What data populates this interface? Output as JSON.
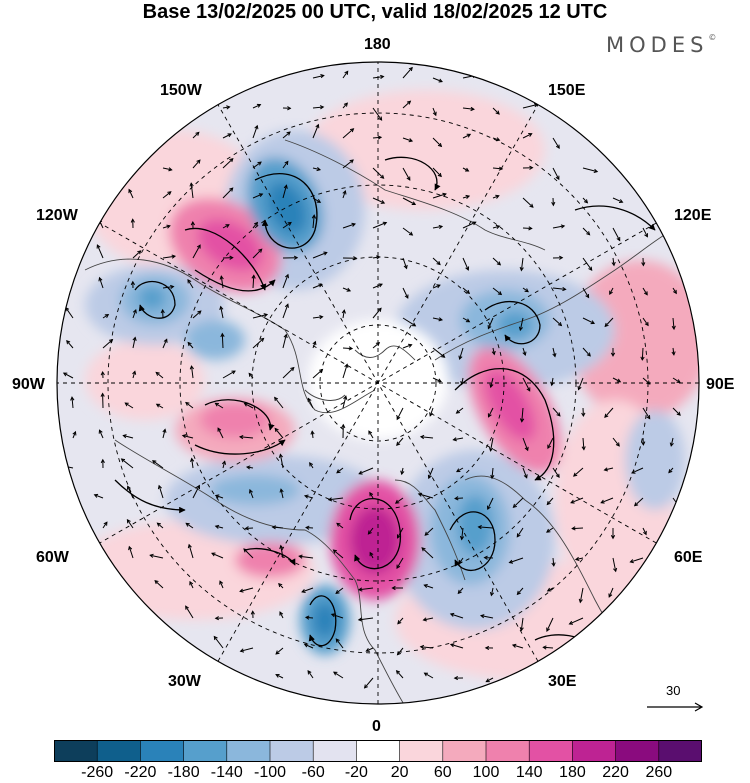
{
  "title": "Base 13/02/2025 00 UTC, valid 18/02/2025 12 UTC",
  "brand": "MODES",
  "brand_mark": "©",
  "longitude_labels": {
    "top": "180",
    "bottom": "0",
    "left": "90W",
    "right": "90E",
    "upper_left_1": "150W",
    "upper_left_2": "120W",
    "lower_left_1": "60W",
    "lower_left_2": "30W",
    "upper_right_1": "150E",
    "upper_right_2": "120E",
    "lower_right_1": "60E",
    "lower_right_2": "30E"
  },
  "reference_vector": "30",
  "colorbar": {
    "ticks": [
      "-260",
      "-220",
      "-180",
      "-140",
      "-100",
      "-60",
      "-20",
      "20",
      "60",
      "100",
      "140",
      "180",
      "220",
      "260"
    ],
    "colors": [
      "#0d3e5b",
      "#0f5f8c",
      "#2a82b9",
      "#569fcc",
      "#8bb7dc",
      "#bccbe6",
      "#e3e3f0",
      "#ffffff",
      "#fad6dc",
      "#f4aabd",
      "#ef81ad",
      "#e351a4",
      "#be2393",
      "#8a0b7e",
      "#5a0e6f"
    ]
  },
  "icons": [
    "north-pole-projection",
    "wind-vector-arrow"
  ],
  "map_features": {
    "projection": "polar stereographic, north pole centered",
    "positive_anomalies": [
      "120W-150W",
      "90W",
      "0 near Greenland",
      "90E-60E",
      "30E",
      "120E"
    ],
    "negative_anomalies": [
      "150W-180",
      "105W",
      "30W",
      "30E-45E",
      "180 upper right",
      "120E"
    ]
  }
}
